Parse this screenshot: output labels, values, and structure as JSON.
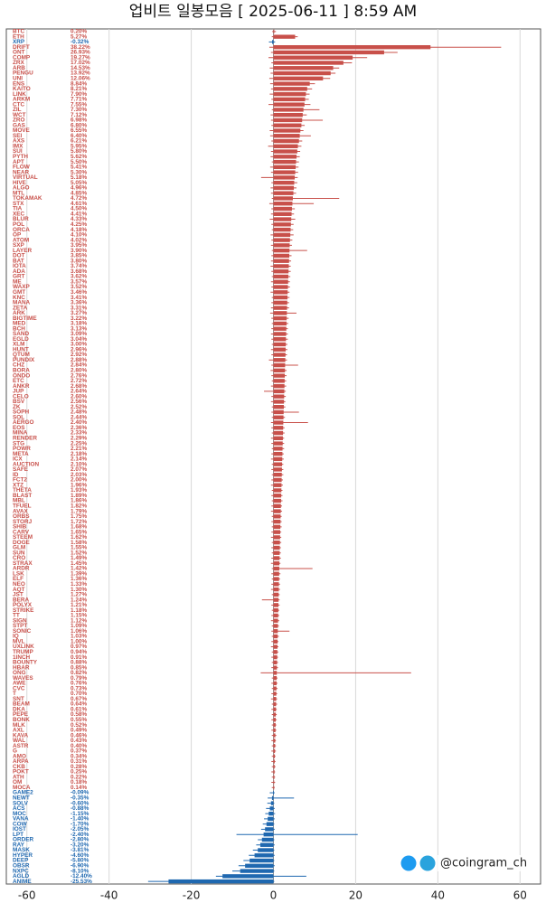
{
  "chart_data": {
    "type": "candle-bar",
    "title": "업비트 일봉모음 [ 2025-06-11 ]  8:59 AM",
    "watermark": "@coingram_ch",
    "up_color": "#c8504a",
    "down_color": "#1f68b0",
    "xlim": [
      -65,
      65
    ],
    "xticks": [
      -60,
      -40,
      -20,
      0,
      20,
      40,
      60
    ],
    "grid": true,
    "categories": [
      "BTC",
      "ETH",
      "XRP",
      "DRIFT",
      "ONT",
      "COMP",
      "ZRX",
      "ARB",
      "PENGU",
      "UNI",
      "ENS",
      "KAITO",
      "LINK",
      "ARKM",
      "CTC",
      "ZIL",
      "WCT",
      "ZRO",
      "GAS",
      "MOVE",
      "SEI",
      "AXS",
      "IMX",
      "SUI",
      "PYTH",
      "APT",
      "FLOW",
      "NEAR",
      "VIRTUAL",
      "HIVE",
      "ALGO",
      "MTL",
      "TOKAMAK",
      "STX",
      "TIA",
      "XEC",
      "BLUR",
      "POL",
      "ORCA",
      "OP",
      "ATOM",
      "SXP",
      "LAYER",
      "DOT",
      "BAT",
      "IOTA",
      "ADA",
      "GRT",
      "ME",
      "WAXP",
      "GMT",
      "KNC",
      "MANA",
      "ZETA",
      "ARK",
      "BIGTIME",
      "MED",
      "BCH",
      "SAND",
      "EGLD",
      "XLM",
      "HUNT",
      "QTUM",
      "PUNDIX",
      "CHZ",
      "BORA",
      "ONDO",
      "ETC",
      "ANKR",
      "JUP",
      "CELO",
      "BSV",
      "ZK",
      "SOPH",
      "SOL",
      "AERGO",
      "EOS",
      "MINA",
      "RENDER",
      "STG",
      "POWR",
      "META",
      "ICX",
      "AUCTION",
      "SAFE",
      "ID",
      "FCT2",
      "XTZ",
      "THETA",
      "BLAST",
      "MBL",
      "TFUEL",
      "AVAX",
      "ORBS",
      "STORJ",
      "SHIB",
      "CARV",
      "STEEM",
      "DOGE",
      "GLM",
      "SUN",
      "CRO",
      "STRAX",
      "ARDR",
      "LSK",
      "ELF",
      "NEO",
      "AQT",
      "JST",
      "BERA",
      "POLYX",
      "STRIKE",
      "TT",
      "SIGN",
      "STPT",
      "SONIC",
      "IQ",
      "MVL",
      "UXLINK",
      "TRUMP",
      "1INCH",
      "BOUNTY",
      "HBAR",
      "ONG",
      "WAVES",
      "AWE",
      "CVC",
      "T",
      "SNT",
      "BEAM",
      "DKA",
      "PEPE",
      "BONK",
      "MLK",
      "AXL",
      "KAVA",
      "WAL",
      "ASTR",
      "G",
      "AMO",
      "ARPA",
      "CKB",
      "POKT",
      "ATH",
      "OM",
      "MOCA",
      "GAME2",
      "NEWT",
      "SOLV",
      "ACS",
      "MOC",
      "VANA",
      "COW",
      "IOST",
      "LPT",
      "ORDER",
      "RAY",
      "MASK",
      "HYPER",
      "DEEP",
      "OBSR",
      "NXPC",
      "AGLD",
      "ANIME"
    ],
    "values": [
      0.2,
      5.27,
      -0.32,
      38.22,
      26.93,
      19.27,
      17.02,
      14.53,
      13.92,
      12.06,
      8.84,
      8.21,
      7.9,
      7.71,
      7.55,
      7.3,
      7.12,
      6.98,
      6.8,
      6.55,
      6.4,
      6.21,
      5.95,
      5.8,
      5.62,
      5.5,
      5.41,
      5.3,
      5.18,
      5.05,
      4.96,
      4.85,
      4.72,
      4.61,
      4.5,
      4.41,
      4.33,
      4.25,
      4.18,
      4.1,
      4.02,
      3.95,
      3.9,
      3.85,
      3.8,
      3.74,
      3.68,
      3.62,
      3.57,
      3.52,
      3.46,
      3.41,
      3.36,
      3.31,
      3.27,
      3.22,
      3.18,
      3.13,
      3.09,
      3.04,
      3.0,
      2.96,
      2.92,
      2.88,
      2.84,
      2.8,
      2.76,
      2.72,
      2.68,
      2.64,
      2.6,
      2.56,
      2.52,
      2.48,
      2.44,
      2.4,
      2.36,
      2.33,
      2.29,
      2.25,
      2.21,
      2.18,
      2.14,
      2.1,
      2.07,
      2.03,
      2.0,
      1.96,
      1.93,
      1.89,
      1.86,
      1.82,
      1.79,
      1.75,
      1.72,
      1.68,
      1.65,
      1.62,
      1.58,
      1.55,
      1.52,
      1.49,
      1.45,
      1.42,
      1.39,
      1.36,
      1.33,
      1.3,
      1.27,
      1.24,
      1.21,
      1.18,
      1.15,
      1.12,
      1.09,
      1.06,
      1.03,
      1.0,
      0.97,
      0.94,
      0.91,
      0.88,
      0.85,
      0.82,
      0.79,
      0.76,
      0.73,
      0.7,
      0.67,
      0.64,
      0.61,
      0.58,
      0.55,
      0.52,
      0.49,
      0.46,
      0.43,
      0.4,
      0.37,
      0.34,
      0.31,
      0.28,
      0.25,
      0.22,
      0.18,
      0.14,
      -0.09,
      -0.35,
      -0.6,
      -0.88,
      -1.15,
      -1.4,
      -1.7,
      -2.05,
      -2.4,
      -2.8,
      -3.2,
      -3.81,
      -4.6,
      -5.8,
      -6.9,
      -8.1,
      -12.4,
      -25.53
    ],
    "value_labels": [
      "0.20%",
      "5.27%",
      "-0.32%",
      "38.22%",
      "26.93%",
      "19.27%",
      "17.02%",
      "14.53%",
      "13.92%",
      "12.06%",
      "8.84%",
      "8.21%",
      "7.90%",
      "7.71%",
      "7.55%",
      "7.30%",
      "7.12%",
      "6.98%",
      "6.80%",
      "6.55%",
      "6.40%",
      "6.21%",
      "5.95%",
      "5.80%",
      "5.62%",
      "5.50%",
      "5.41%",
      "5.30%",
      "5.18%",
      "5.05%",
      "4.96%",
      "4.85%",
      "4.72%",
      "4.61%",
      "4.50%",
      "4.41%",
      "4.33%",
      "4.25%",
      "4.18%",
      "4.10%",
      "4.02%",
      "3.95%",
      "3.90%",
      "3.85%",
      "3.80%",
      "3.74%",
      "3.68%",
      "3.62%",
      "3.57%",
      "3.52%",
      "3.46%",
      "3.41%",
      "3.36%",
      "3.31%",
      "3.27%",
      "3.22%",
      "3.18%",
      "3.13%",
      "3.09%",
      "3.04%",
      "3.00%",
      "2.96%",
      "2.92%",
      "2.88%",
      "2.84%",
      "2.80%",
      "2.76%",
      "2.72%",
      "2.68%",
      "2.64%",
      "2.60%",
      "2.56%",
      "2.52%",
      "2.48%",
      "2.44%",
      "2.40%",
      "2.36%",
      "2.33%",
      "2.29%",
      "2.25%",
      "2.21%",
      "2.18%",
      "2.14%",
      "2.10%",
      "2.07%",
      "2.03%",
      "2.00%",
      "1.96%",
      "1.93%",
      "1.89%",
      "1.86%",
      "1.82%",
      "1.79%",
      "1.75%",
      "1.72%",
      "1.68%",
      "1.65%",
      "1.62%",
      "1.58%",
      "1.55%",
      "1.52%",
      "1.49%",
      "1.45%",
      "1.42%",
      "1.39%",
      "1.36%",
      "1.33%",
      "1.30%",
      "1.27%",
      "1.24%",
      "1.21%",
      "1.18%",
      "1.15%",
      "1.12%",
      "1.09%",
      "1.06%",
      "1.03%",
      "1.00%",
      "0.97%",
      "0.94%",
      "0.91%",
      "0.88%",
      "0.85%",
      "0.82%",
      "0.79%",
      "0.76%",
      "0.73%",
      "0.70%",
      "0.67%",
      "0.64%",
      "0.61%",
      "0.58%",
      "0.55%",
      "0.52%",
      "0.49%",
      "0.46%",
      "0.43%",
      "0.40%",
      "0.37%",
      "0.34%",
      "0.31%",
      "0.28%",
      "0.25%",
      "0.22%",
      "0.18%",
      "0.14%",
      "-0.09%",
      "-0.35%",
      "-0.60%",
      "-0.88%",
      "-1.15%",
      "-1.40%",
      "-1.70%",
      "-2.05%",
      "-2.40%",
      "-2.80%",
      "-3.20%",
      "-3.81%",
      "-4.60%",
      "-5.80%",
      "-6.90%",
      "-8.10%",
      "-12.40%",
      "-25.53%"
    ],
    "low": [
      -0.3,
      -0.4,
      -1.1,
      -1.0,
      -0.6,
      -1.2,
      -0.5,
      -0.9,
      -0.7,
      -1.0,
      -0.8,
      -0.6,
      -0.9,
      -0.5,
      -1.2,
      -0.4,
      -0.7,
      -0.6,
      -0.5,
      -0.9,
      -0.8,
      -0.5,
      -1.3,
      -0.6,
      -0.7,
      -0.4,
      -0.8,
      -0.6,
      -3.0,
      -0.5,
      -0.7,
      -0.6,
      -0.4,
      -1.0,
      -0.5,
      -0.6,
      -0.9,
      -0.5,
      -0.4,
      -0.7,
      -0.5,
      -0.6,
      -0.4,
      -0.5,
      -0.6,
      -0.7,
      -0.5,
      -0.4,
      -0.6,
      -0.5,
      -0.7,
      -0.4,
      -0.5,
      -0.6,
      -0.8,
      -0.5,
      -0.4,
      -0.5,
      -0.6,
      -0.5,
      -0.4,
      -0.6,
      -0.5,
      -1.1,
      -0.5,
      -0.7,
      -0.5,
      -0.4,
      -0.6,
      -2.3,
      -0.5,
      -0.6,
      -0.4,
      -0.5,
      -0.4,
      -0.6,
      -0.5,
      -0.4,
      -0.6,
      -0.5,
      -0.4,
      -0.5,
      -0.6,
      -0.4,
      -0.5,
      -0.4,
      -0.5,
      -0.6,
      -0.4,
      -0.5,
      -0.4,
      -0.5,
      -0.6,
      -0.4,
      -0.5,
      -0.4,
      -0.5,
      -0.6,
      -0.4,
      -0.5,
      -0.4,
      -0.5,
      -0.6,
      -0.4,
      -0.5,
      -0.4,
      -0.5,
      -0.6,
      -0.4,
      -2.8,
      -0.5,
      -0.4,
      -0.5,
      -0.6,
      -0.4,
      -0.5,
      -0.4,
      -0.5,
      -0.6,
      -0.4,
      -0.5,
      -0.4,
      -0.5,
      -3.1,
      -0.4,
      -0.5,
      -0.4,
      -0.5,
      -0.6,
      -0.4,
      -0.5,
      -0.4,
      -0.5,
      -0.4,
      -0.5,
      -0.4,
      -0.5,
      -0.4,
      -0.5,
      -0.4,
      -0.5,
      -0.4,
      -0.5,
      -0.4,
      -0.5,
      -0.4,
      -0.9,
      -1.4,
      -1.5,
      -1.8,
      -2.0,
      -2.3,
      -2.6,
      -3.0,
      -9.0,
      -3.8,
      -4.2,
      -5.0,
      -6.0,
      -7.3,
      -8.5,
      -10.0,
      -14.0,
      -30.5
    ],
    "high": [
      0.6,
      5.9,
      0.4,
      55.4,
      30.2,
      22.8,
      19.1,
      16.0,
      15.1,
      13.8,
      10.1,
      9.4,
      8.8,
      8.6,
      9.0,
      11.2,
      8.1,
      12.0,
      7.6,
      7.3,
      9.1,
      7.0,
      6.8,
      6.5,
      6.4,
      6.2,
      6.1,
      6.0,
      5.9,
      5.8,
      5.6,
      5.5,
      16.0,
      9.8,
      5.2,
      5.0,
      5.3,
      4.9,
      4.8,
      4.9,
      4.6,
      4.5,
      8.2,
      4.4,
      4.3,
      4.2,
      4.2,
      4.1,
      4.0,
      4.0,
      3.9,
      3.9,
      3.8,
      3.8,
      5.6,
      3.7,
      3.6,
      3.5,
      3.5,
      3.5,
      3.4,
      3.4,
      3.3,
      3.3,
      6.0,
      3.2,
      3.2,
      3.1,
      3.1,
      3.0,
      3.0,
      2.9,
      2.9,
      6.2,
      2.8,
      8.4,
      2.7,
      2.7,
      2.6,
      2.6,
      2.6,
      2.5,
      2.5,
      2.4,
      2.4,
      2.4,
      2.3,
      2.3,
      2.2,
      2.2,
      2.2,
      2.1,
      2.1,
      2.0,
      2.0,
      2.0,
      1.9,
      1.9,
      1.9,
      1.8,
      1.8,
      1.8,
      1.7,
      9.5,
      1.7,
      1.6,
      1.6,
      1.6,
      1.5,
      1.5,
      1.5,
      1.4,
      1.4,
      1.4,
      1.3,
      3.9,
      1.3,
      1.2,
      1.2,
      1.2,
      1.1,
      1.1,
      1.1,
      33.5,
      1.0,
      1.0,
      1.0,
      0.9,
      0.9,
      0.9,
      0.8,
      0.8,
      0.8,
      0.7,
      0.7,
      0.7,
      0.6,
      0.6,
      0.6,
      0.5,
      0.5,
      0.5,
      0.4,
      0.4,
      0.4,
      0.3,
      0.3,
      5.0,
      0.2,
      0.3,
      0.4,
      0.3,
      0.2,
      0.3,
      20.5,
      0.2,
      0.3,
      0.2,
      0.3,
      0.2,
      0.3,
      0.2,
      8.0,
      0.2
    ]
  }
}
